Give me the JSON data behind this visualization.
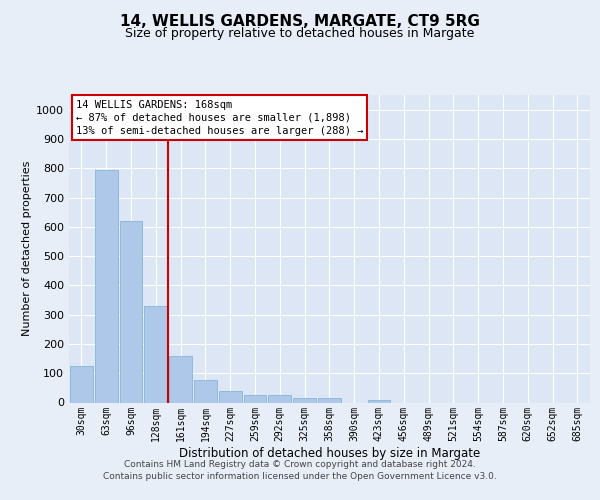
{
  "title1": "14, WELLIS GARDENS, MARGATE, CT9 5RG",
  "title2": "Size of property relative to detached houses in Margate",
  "xlabel": "Distribution of detached houses by size in Margate",
  "ylabel": "Number of detached properties",
  "categories": [
    "30sqm",
    "63sqm",
    "96sqm",
    "128sqm",
    "161sqm",
    "194sqm",
    "227sqm",
    "259sqm",
    "292sqm",
    "325sqm",
    "358sqm",
    "390sqm",
    "423sqm",
    "456sqm",
    "489sqm",
    "521sqm",
    "554sqm",
    "587sqm",
    "620sqm",
    "652sqm",
    "685sqm"
  ],
  "values": [
    125,
    795,
    620,
    330,
    160,
    77,
    40,
    27,
    26,
    16,
    14,
    0,
    10,
    0,
    0,
    0,
    0,
    0,
    0,
    0,
    0
  ],
  "bar_color": "#adc8e8",
  "bar_edge_color": "#7aafd4",
  "vline_color": "#cc0000",
  "vline_x_index": 3.5,
  "annotation_line1": "14 WELLIS GARDENS: 168sqm",
  "annotation_line2": "← 87% of detached houses are smaller (1,898)",
  "annotation_line3": "13% of semi-detached houses are larger (288) →",
  "ylim": [
    0,
    1050
  ],
  "yticks": [
    0,
    100,
    200,
    300,
    400,
    500,
    600,
    700,
    800,
    900,
    1000
  ],
  "footer_line1": "Contains HM Land Registry data © Crown copyright and database right 2024.",
  "footer_line2": "Contains public sector information licensed under the Open Government Licence v3.0.",
  "fig_bg_color": "#e8eef8",
  "plot_bg_color": "#dde6f5",
  "grid_color": "#ffffff",
  "ann_bg_color": "#ffffff",
  "ann_edge_color": "#cc0000"
}
